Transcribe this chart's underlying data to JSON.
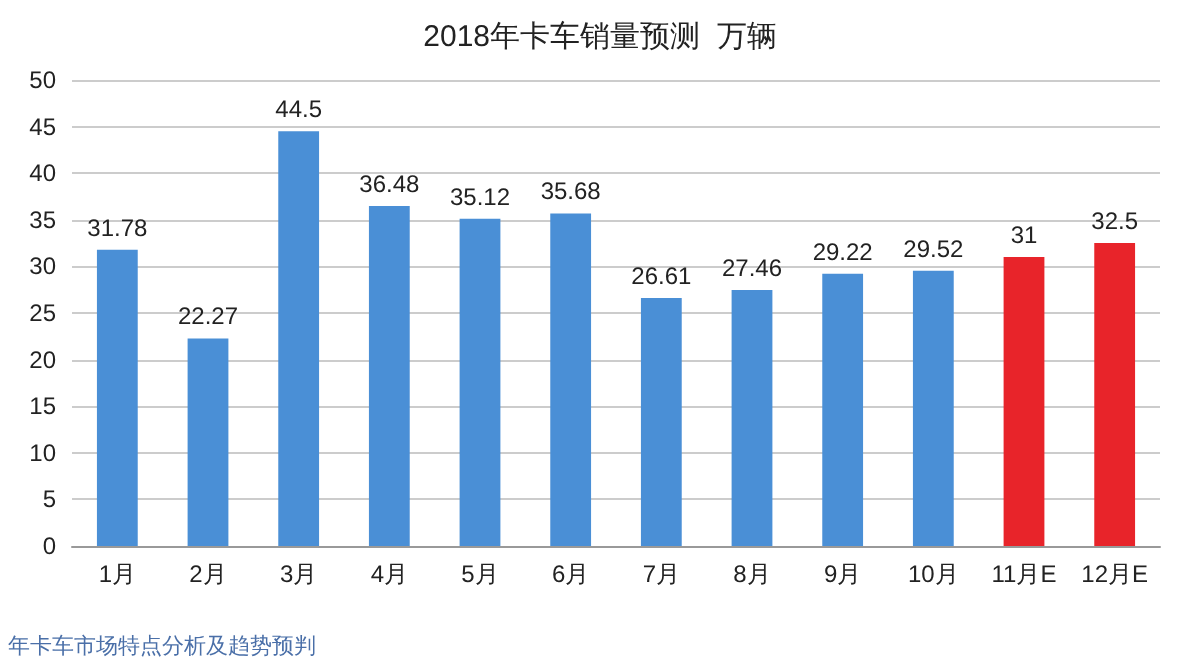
{
  "chart_data": {
    "type": "bar",
    "title": "2018年卡车销量预测  万辆",
    "categories": [
      "1月",
      "2月",
      "3月",
      "4月",
      "5月",
      "6月",
      "7月",
      "8月",
      "9月",
      "10月",
      "11月E",
      "12月E"
    ],
    "values": [
      31.78,
      22.27,
      44.5,
      36.48,
      35.12,
      35.68,
      26.61,
      27.46,
      29.22,
      29.52,
      31,
      32.5
    ],
    "colors": [
      "#4a8fd6",
      "#4a8fd6",
      "#4a8fd6",
      "#4a8fd6",
      "#4a8fd6",
      "#4a8fd6",
      "#4a8fd6",
      "#4a8fd6",
      "#4a8fd6",
      "#4a8fd6",
      "#e8242a",
      "#e8242a"
    ],
    "ylim": [
      0,
      50
    ],
    "yticks": [
      0,
      5,
      10,
      15,
      20,
      25,
      30,
      35,
      40,
      45,
      50
    ],
    "grid": "y",
    "data_labels": true,
    "annotations": [
      "年卡车市场特点分析及趋势预判"
    ]
  }
}
